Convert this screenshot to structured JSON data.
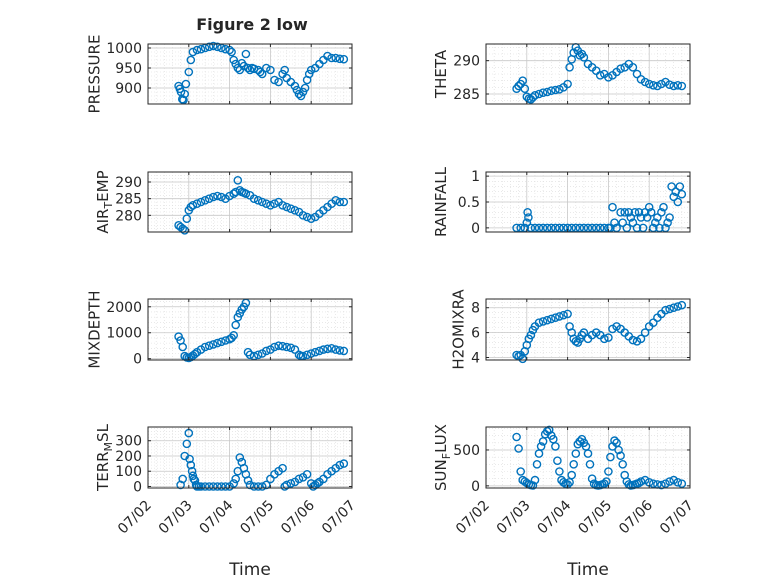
{
  "title": "Figure 2 low",
  "x_tick_labels": [
    "07/02",
    "07/03",
    "07/04",
    "07/05",
    "07/06",
    "07/07"
  ],
  "x_label": "Time",
  "colors": {
    "marker": "#0072BD",
    "axis": "#262626",
    "grid": "#dcdcdc"
  },
  "chart_data": [
    {
      "type": "scatter",
      "ylabel": "PRESSURE",
      "ylim": [
        860,
        1010
      ],
      "yticks": [
        900,
        950,
        1000
      ],
      "ytick_labels": [
        "900",
        "950",
        "1000"
      ],
      "x": [
        2.75,
        2.78,
        2.81,
        2.84,
        2.87,
        2.9,
        2.93,
        3.0,
        3.05,
        3.1,
        3.2,
        3.3,
        3.4,
        3.5,
        3.6,
        3.7,
        3.8,
        3.9,
        4.0,
        4.05,
        4.1,
        4.15,
        4.2,
        4.25,
        4.3,
        4.35,
        4.4,
        4.45,
        4.5,
        4.55,
        4.6,
        4.7,
        4.75,
        4.8,
        4.9,
        5.0,
        5.1,
        5.2,
        5.3,
        5.35,
        5.4,
        5.5,
        5.6,
        5.65,
        5.7,
        5.75,
        5.8,
        5.85,
        5.9,
        5.95,
        6.0,
        6.1,
        6.2,
        6.3,
        6.4,
        6.5,
        6.6,
        6.7,
        6.8
      ],
      "y": [
        905,
        898,
        890,
        872,
        870,
        885,
        910,
        940,
        970,
        990,
        995,
        997,
        1000,
        1003,
        1005,
        1003,
        1000,
        997,
        995,
        990,
        970,
        960,
        950,
        945,
        962,
        955,
        985,
        950,
        945,
        950,
        948,
        945,
        940,
        935,
        950,
        945,
        920,
        915,
        935,
        945,
        925,
        915,
        905,
        895,
        885,
        880,
        890,
        900,
        920,
        935,
        945,
        950,
        960,
        970,
        980,
        975,
        975,
        973,
        972
      ]
    },
    {
      "type": "scatter",
      "ylabel": "THETA",
      "ylim": [
        283.5,
        292.5
      ],
      "yticks": [
        285,
        290
      ],
      "ytick_labels": [
        "285",
        "290"
      ],
      "x": [
        2.75,
        2.8,
        2.85,
        2.9,
        2.95,
        3.0,
        3.05,
        3.1,
        3.15,
        3.2,
        3.3,
        3.4,
        3.5,
        3.6,
        3.7,
        3.8,
        3.9,
        4.0,
        4.05,
        4.1,
        4.15,
        4.2,
        4.25,
        4.3,
        4.35,
        4.4,
        4.5,
        4.6,
        4.7,
        4.8,
        4.9,
        5.0,
        5.1,
        5.2,
        5.3,
        5.4,
        5.5,
        5.6,
        5.7,
        5.8,
        5.9,
        6.0,
        6.1,
        6.2,
        6.3,
        6.4,
        6.5,
        6.6,
        6.7,
        6.8
      ],
      "y": [
        285.8,
        286.2,
        286.5,
        287.0,
        285.8,
        284.6,
        284.3,
        284.2,
        284.5,
        284.8,
        285.0,
        285.2,
        285.3,
        285.5,
        285.6,
        285.7,
        286.0,
        286.5,
        289.0,
        290.2,
        291.2,
        292.0,
        291.5,
        290.8,
        291.0,
        290.5,
        289.5,
        289.0,
        288.5,
        287.8,
        288.0,
        287.5,
        287.8,
        288.3,
        288.8,
        289.0,
        289.5,
        289.0,
        288.0,
        287.2,
        286.8,
        286.5,
        286.3,
        286.2,
        286.5,
        286.8,
        286.4,
        286.2,
        286.3,
        286.2
      ]
    },
    {
      "type": "scatter",
      "ylabel": "AIR_TEMP",
      "ylim": [
        275,
        293
      ],
      "yticks": [
        280,
        285,
        290
      ],
      "ytick_labels": [
        "280",
        "285",
        "290"
      ],
      "x": [
        2.75,
        2.8,
        2.85,
        2.9,
        2.95,
        3.0,
        3.05,
        3.1,
        3.2,
        3.3,
        3.4,
        3.5,
        3.6,
        3.7,
        3.8,
        3.9,
        4.0,
        4.1,
        4.15,
        4.2,
        4.25,
        4.3,
        4.35,
        4.4,
        4.5,
        4.6,
        4.7,
        4.8,
        4.9,
        5.0,
        5.1,
        5.2,
        5.3,
        5.4,
        5.5,
        5.6,
        5.7,
        5.8,
        5.9,
        6.0,
        6.1,
        6.2,
        6.3,
        6.4,
        6.5,
        6.6,
        6.7,
        6.8
      ],
      "y": [
        277.0,
        276.5,
        276.0,
        275.5,
        279.0,
        281.5,
        282.5,
        283.0,
        283.5,
        284.0,
        284.5,
        285.0,
        285.5,
        285.8,
        285.5,
        285.0,
        285.8,
        286.5,
        287.0,
        290.5,
        287.5,
        287.0,
        286.8,
        286.5,
        286.0,
        285.0,
        284.5,
        284.0,
        283.5,
        283.0,
        283.5,
        284.0,
        283.0,
        282.5,
        282.0,
        281.5,
        281.0,
        280.0,
        279.5,
        279.0,
        279.5,
        280.5,
        281.5,
        282.5,
        283.5,
        284.5,
        284.0,
        284.0
      ]
    },
    {
      "type": "scatter",
      "ylabel": "RAINFALL",
      "ylim": [
        -0.08,
        1.08
      ],
      "yticks": [
        0,
        0.5,
        1
      ],
      "ytick_labels": [
        "0",
        "0.5",
        "1"
      ],
      "x": [
        2.75,
        2.85,
        2.95,
        3.0,
        3.02,
        3.04,
        3.1,
        3.2,
        3.3,
        3.4,
        3.5,
        3.6,
        3.7,
        3.8,
        3.9,
        4.0,
        4.1,
        4.2,
        4.3,
        4.4,
        4.5,
        4.6,
        4.7,
        4.8,
        4.9,
        5.0,
        5.05,
        5.1,
        5.15,
        5.2,
        5.3,
        5.35,
        5.4,
        5.45,
        5.5,
        5.55,
        5.6,
        5.65,
        5.7,
        5.75,
        5.8,
        5.85,
        5.9,
        5.95,
        6.0,
        6.05,
        6.1,
        6.15,
        6.2,
        6.25,
        6.3,
        6.35,
        6.4,
        6.45,
        6.5,
        6.55,
        6.6,
        6.65,
        6.7,
        6.75,
        6.8
      ],
      "y": [
        0,
        0,
        0,
        0.1,
        0.3,
        0.2,
        0,
        0,
        0,
        0,
        0,
        0,
        0,
        0,
        0,
        0,
        0,
        0,
        0,
        0,
        0,
        0,
        0,
        0,
        0,
        0,
        0,
        0.4,
        0.1,
        0,
        0.3,
        0.1,
        0.3,
        0,
        0.3,
        0.2,
        0.1,
        0.3,
        0,
        0.3,
        0.2,
        0,
        0.3,
        0.2,
        0.4,
        0.3,
        0,
        0.1,
        0.2,
        0,
        0.3,
        0.4,
        0,
        0.1,
        0.2,
        0.8,
        0.6,
        0.7,
        0.5,
        0.8,
        0.65
      ]
    },
    {
      "type": "scatter",
      "ylabel": "MIXDEPTH",
      "ylim": [
        -50,
        2300
      ],
      "yticks": [
        0,
        1000,
        2000
      ],
      "ytick_labels": [
        "0",
        "1000",
        "2000"
      ],
      "x": [
        2.75,
        2.8,
        2.85,
        2.9,
        2.95,
        3.0,
        3.05,
        3.1,
        3.15,
        3.2,
        3.3,
        3.4,
        3.5,
        3.6,
        3.7,
        3.8,
        3.9,
        4.0,
        4.05,
        4.1,
        4.15,
        4.2,
        4.25,
        4.3,
        4.35,
        4.4,
        4.45,
        4.5,
        4.6,
        4.7,
        4.8,
        4.9,
        5.0,
        5.1,
        5.2,
        5.3,
        5.4,
        5.5,
        5.6,
        5.7,
        5.75,
        5.8,
        5.9,
        6.0,
        6.1,
        6.2,
        6.3,
        6.4,
        6.5,
        6.6,
        6.7,
        6.8
      ],
      "y": [
        850,
        700,
        450,
        100,
        50,
        30,
        60,
        120,
        180,
        250,
        350,
        450,
        500,
        550,
        600,
        650,
        700,
        750,
        800,
        900,
        1300,
        1600,
        1750,
        1900,
        2000,
        2150,
        250,
        150,
        100,
        150,
        200,
        300,
        350,
        450,
        500,
        480,
        450,
        420,
        350,
        150,
        100,
        100,
        150,
        200,
        250,
        300,
        350,
        380,
        400,
        350,
        320,
        300
      ]
    },
    {
      "type": "scatter",
      "ylabel": "H2OMIXRA",
      "ylim": [
        3.8,
        8.7
      ],
      "yticks": [
        4,
        6,
        8
      ],
      "ytick_labels": [
        "4",
        "6",
        "8"
      ],
      "x": [
        2.75,
        2.8,
        2.85,
        2.9,
        2.95,
        3.0,
        3.05,
        3.1,
        3.15,
        3.2,
        3.3,
        3.4,
        3.5,
        3.6,
        3.7,
        3.8,
        3.9,
        4.0,
        4.05,
        4.1,
        4.15,
        4.2,
        4.25,
        4.3,
        4.35,
        4.4,
        4.5,
        4.6,
        4.7,
        4.8,
        4.9,
        5.0,
        5.1,
        5.2,
        5.3,
        5.4,
        5.5,
        5.6,
        5.7,
        5.8,
        5.9,
        6.0,
        6.1,
        6.2,
        6.3,
        6.4,
        6.5,
        6.6,
        6.7,
        6.8
      ],
      "y": [
        4.2,
        4.1,
        4.2,
        3.9,
        4.5,
        5.0,
        5.5,
        5.8,
        6.2,
        6.5,
        6.8,
        6.9,
        7.0,
        7.1,
        7.2,
        7.3,
        7.4,
        7.5,
        6.5,
        6.0,
        5.5,
        5.3,
        5.2,
        5.5,
        5.8,
        6.0,
        5.5,
        5.8,
        6.0,
        5.8,
        5.5,
        5.6,
        6.3,
        6.5,
        6.3,
        6.0,
        5.7,
        5.4,
        5.3,
        5.5,
        6.0,
        6.5,
        6.8,
        7.2,
        7.5,
        7.8,
        7.9,
        8.0,
        8.1,
        8.2
      ]
    },
    {
      "type": "scatter",
      "ylabel": "TERR_MSL",
      "ylim": [
        -10,
        390
      ],
      "yticks": [
        0,
        100,
        200,
        300
      ],
      "ytick_labels": [
        "0",
        "100",
        "200",
        "300"
      ],
      "x": [
        2.8,
        2.85,
        2.9,
        2.95,
        3.0,
        3.02,
        3.05,
        3.08,
        3.1,
        3.12,
        3.15,
        3.18,
        3.2,
        3.25,
        3.3,
        3.4,
        3.5,
        3.6,
        3.7,
        3.8,
        3.9,
        4.0,
        4.1,
        4.15,
        4.2,
        4.25,
        4.3,
        4.35,
        4.4,
        4.45,
        4.5,
        4.6,
        4.7,
        4.8,
        4.9,
        5.0,
        5.1,
        5.2,
        5.3,
        5.35,
        5.4,
        5.5,
        5.6,
        5.7,
        5.8,
        5.9,
        6.0,
        6.05,
        6.1,
        6.15,
        6.2,
        6.3,
        6.4,
        6.5,
        6.6,
        6.7,
        6.8
      ],
      "y": [
        10,
        50,
        200,
        280,
        350,
        180,
        140,
        100,
        70,
        50,
        40,
        10,
        0,
        0,
        0,
        0,
        0,
        0,
        0,
        0,
        0,
        0,
        20,
        50,
        100,
        190,
        160,
        120,
        80,
        40,
        10,
        0,
        0,
        0,
        10,
        50,
        80,
        100,
        120,
        0,
        10,
        20,
        30,
        50,
        60,
        80,
        20,
        0,
        10,
        20,
        30,
        50,
        80,
        100,
        120,
        140,
        150
      ]
    },
    {
      "type": "scatter",
      "ylabel": "SUN_FLUX",
      "ylim": [
        -30,
        820
      ],
      "yticks": [
        0,
        500
      ],
      "ytick_labels": [
        "0",
        "500"
      ],
      "x": [
        2.75,
        2.8,
        2.85,
        2.9,
        2.95,
        3.0,
        3.05,
        3.1,
        3.15,
        3.2,
        3.25,
        3.3,
        3.35,
        3.4,
        3.45,
        3.5,
        3.55,
        3.6,
        3.65,
        3.7,
        3.75,
        3.8,
        3.85,
        3.9,
        3.95,
        4.0,
        4.05,
        4.1,
        4.15,
        4.2,
        4.25,
        4.3,
        4.35,
        4.4,
        4.45,
        4.5,
        4.55,
        4.6,
        4.65,
        4.7,
        4.75,
        4.8,
        4.85,
        4.9,
        4.95,
        5.0,
        5.05,
        5.1,
        5.15,
        5.2,
        5.25,
        5.3,
        5.35,
        5.4,
        5.45,
        5.5,
        5.55,
        5.6,
        5.65,
        5.7,
        5.75,
        5.8,
        5.9,
        6.0,
        6.1,
        6.2,
        6.3,
        6.4,
        6.5,
        6.6,
        6.7,
        6.8
      ],
      "y": [
        680,
        520,
        200,
        80,
        60,
        40,
        20,
        10,
        5,
        80,
        300,
        450,
        550,
        620,
        720,
        760,
        780,
        700,
        650,
        550,
        350,
        200,
        80,
        50,
        30,
        20,
        50,
        150,
        300,
        450,
        580,
        620,
        650,
        600,
        550,
        450,
        300,
        100,
        30,
        10,
        5,
        10,
        20,
        30,
        60,
        200,
        400,
        550,
        630,
        600,
        500,
        420,
        300,
        150,
        60,
        20,
        5,
        10,
        20,
        30,
        40,
        60,
        80,
        50,
        30,
        20,
        10,
        30,
        60,
        80,
        50,
        30
      ]
    }
  ]
}
